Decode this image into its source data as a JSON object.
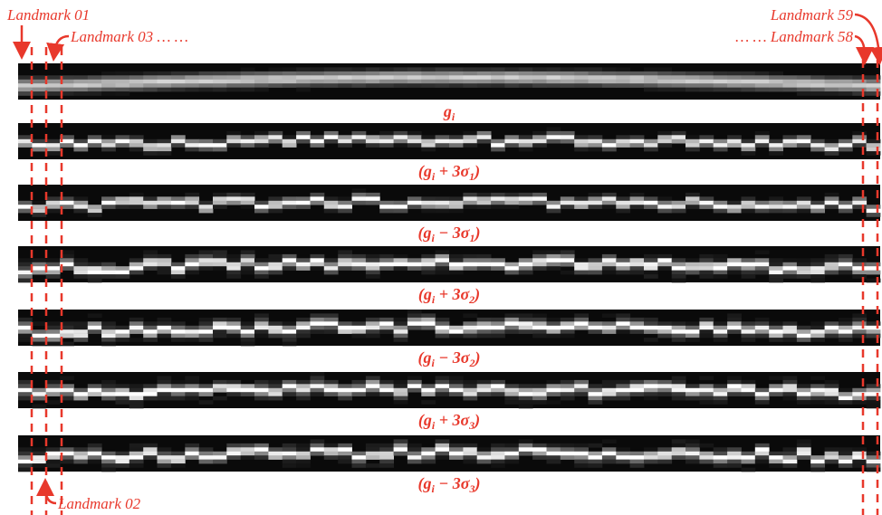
{
  "landmarks": {
    "first": "Landmark 01",
    "second": "Landmark 02",
    "third": "Landmark 03 … …",
    "last": "Landmark 59",
    "second_last": "… … Landmark 58"
  },
  "strips": [
    {
      "caption": [
        {
          "text": "g"
        },
        {
          "sub": "i"
        }
      ]
    },
    {
      "caption": [
        {
          "text": "(g"
        },
        {
          "sub": "i"
        },
        {
          "text": " + 3σ"
        },
        {
          "sub": "1"
        },
        {
          "text": ")"
        }
      ]
    },
    {
      "caption": [
        {
          "text": "(g"
        },
        {
          "sub": "i"
        },
        {
          "text": " − 3σ"
        },
        {
          "sub": "1"
        },
        {
          "text": ")"
        }
      ]
    },
    {
      "caption": [
        {
          "text": "(g"
        },
        {
          "sub": "i"
        },
        {
          "text": " + 3σ"
        },
        {
          "sub": "2"
        },
        {
          "text": ")"
        }
      ]
    },
    {
      "caption": [
        {
          "text": "(g"
        },
        {
          "sub": "i"
        },
        {
          "text": " − 3σ"
        },
        {
          "sub": "2"
        },
        {
          "text": ")"
        }
      ]
    },
    {
      "caption": [
        {
          "text": "(g"
        },
        {
          "sub": "i"
        },
        {
          "text": " + 3σ"
        },
        {
          "sub": "3"
        },
        {
          "text": ")"
        }
      ]
    },
    {
      "caption": [
        {
          "text": "(g"
        },
        {
          "sub": "i"
        },
        {
          "text": " − 3σ"
        },
        {
          "sub": "3"
        },
        {
          "text": ")"
        }
      ]
    }
  ]
}
